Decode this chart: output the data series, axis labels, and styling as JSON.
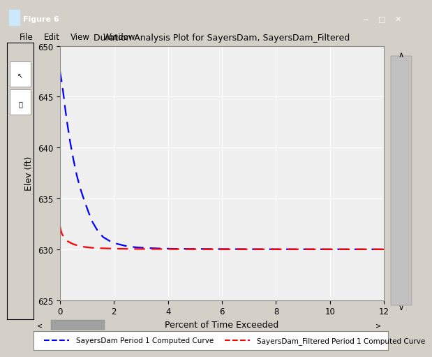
{
  "title": "Duration Analysis Plot for SayersDam, SayersDam_Filtered",
  "xlabel": "Percent of Time Exceeded",
  "ylabel": "Elev (ft)",
  "xlim": [
    0,
    12
  ],
  "ylim": [
    625,
    650
  ],
  "yticks": [
    625,
    630,
    635,
    640,
    645,
    650
  ],
  "xticks": [
    0,
    2,
    4,
    6,
    8,
    10,
    12
  ],
  "blue_color": "#0000FF",
  "red_color": "#FF0000",
  "window_bg": "#D4D0C8",
  "plot_bg_color": "#F0F0F0",
  "legend_label_blue": "SayersDam Period 1 Computed Curve",
  "legend_label_red": "SayersDam_Filtered Period 1 Computed Curve",
  "blue_x": [
    0.0,
    0.03,
    0.06,
    0.1,
    0.15,
    0.2,
    0.28,
    0.38,
    0.5,
    0.62,
    0.75,
    0.9,
    1.05,
    1.2,
    1.4,
    1.6,
    1.85,
    2.1,
    2.4,
    2.8,
    3.2,
    3.7,
    4.2,
    4.8,
    5.5,
    6.2,
    7.0,
    7.8,
    8.6,
    9.5,
    10.4,
    11.2,
    12.0
  ],
  "blue_y": [
    647.5,
    647.0,
    646.5,
    645.8,
    644.8,
    643.7,
    642.2,
    640.5,
    638.8,
    637.3,
    636.0,
    634.8,
    633.7,
    632.7,
    631.8,
    631.2,
    630.8,
    630.55,
    630.35,
    630.2,
    630.13,
    630.08,
    630.05,
    630.04,
    630.03,
    630.02,
    630.015,
    630.01,
    630.008,
    630.005,
    630.003,
    630.001,
    630.0
  ],
  "red_x": [
    0.0,
    0.03,
    0.06,
    0.1,
    0.15,
    0.2,
    0.28,
    0.38,
    0.5,
    0.65,
    0.8,
    0.95,
    1.1,
    1.3,
    1.55,
    1.8,
    2.1,
    2.5,
    3.0,
    3.6,
    4.3,
    5.1,
    6.0,
    7.0,
    8.0,
    9.0,
    10.0,
    11.0,
    12.0
  ],
  "red_y": [
    632.3,
    631.9,
    631.6,
    631.4,
    631.2,
    631.0,
    630.8,
    630.65,
    630.5,
    630.38,
    630.28,
    630.22,
    630.17,
    630.13,
    630.1,
    630.08,
    630.06,
    630.04,
    630.03,
    630.025,
    630.02,
    630.015,
    630.01,
    630.008,
    630.005,
    630.003,
    630.002,
    630.001,
    629.998
  ]
}
